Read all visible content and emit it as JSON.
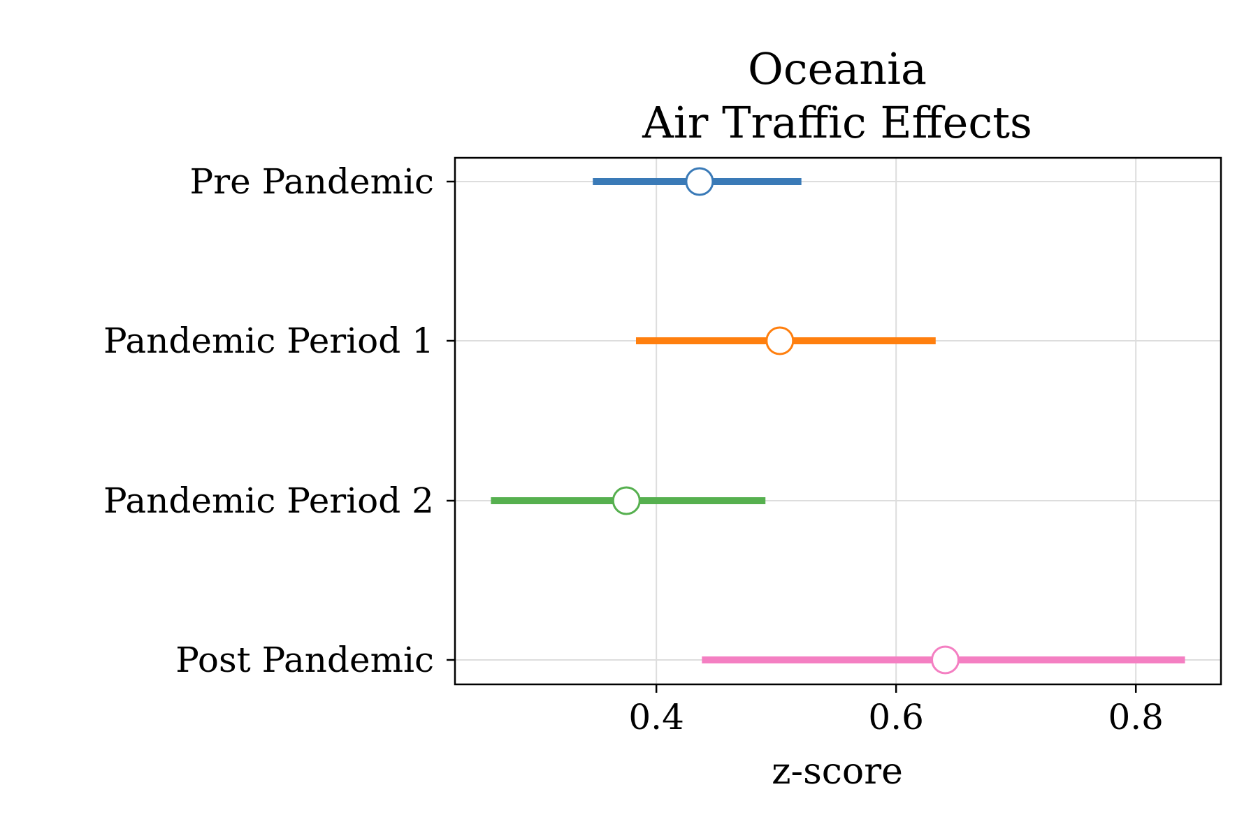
{
  "chart_data": {
    "type": "forest",
    "title_lines": [
      "Oceania",
      "Air Traffic Effects"
    ],
    "xlabel": "z-score",
    "ylabel": "",
    "xlim": [
      0.232,
      0.871
    ],
    "xticks": [
      0.4,
      0.6,
      0.8
    ],
    "xtick_labels": [
      "0.4",
      "0.6",
      "0.8"
    ],
    "grid": true,
    "categories": [
      "Pre Pandemic",
      "Pandemic Period 1",
      "Pandemic Period 2",
      "Post Pandemic"
    ],
    "series": [
      {
        "category": "Pre Pandemic",
        "estimate": 0.436,
        "lower": 0.347,
        "upper": 0.521,
        "color": "#3a7ab7"
      },
      {
        "category": "Pandemic Period 1",
        "estimate": 0.503,
        "lower": 0.383,
        "upper": 0.633,
        "color": "#ff7f0e"
      },
      {
        "category": "Pandemic Period 2",
        "estimate": 0.375,
        "lower": 0.262,
        "upper": 0.491,
        "color": "#56b04f"
      },
      {
        "category": "Post Pandemic",
        "estimate": 0.641,
        "lower": 0.438,
        "upper": 0.841,
        "color": "#f47fc2"
      }
    ]
  }
}
